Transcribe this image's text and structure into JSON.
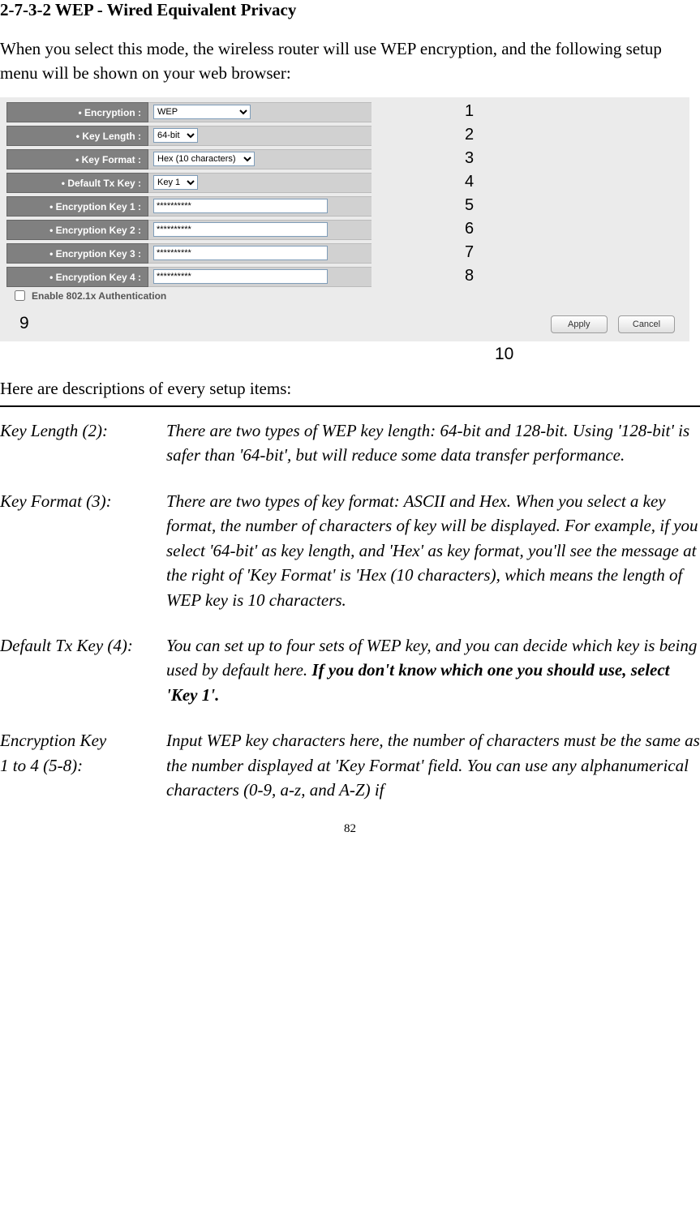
{
  "heading": "2-7-3-2 WEP - Wired Equivalent Privacy",
  "intro": "When you select this mode, the wireless router will use WEP encryption, and the following setup menu will be shown on your web browser:",
  "form": {
    "encryption_label": "Encryption :",
    "encryption_value": "WEP",
    "keylength_label": "Key Length :",
    "keylength_value": "64-bit",
    "keyformat_label": "Key Format :",
    "keyformat_value": "Hex (10 characters)",
    "defaulttx_label": "Default Tx Key :",
    "defaulttx_value": "Key 1",
    "key1_label": "Encryption Key 1 :",
    "key1_value": "**********",
    "key2_label": "Encryption Key 2 :",
    "key2_value": "**********",
    "key3_label": "Encryption Key 3 :",
    "key3_value": "**********",
    "key4_label": "Encryption Key 4 :",
    "key4_value": "**********",
    "auth_label": "Enable 802.1x Authentication",
    "apply_label": "Apply",
    "cancel_label": "Cancel"
  },
  "annotations": {
    "n1": "1",
    "n2": "2",
    "n3": "3",
    "n4": "4",
    "n5": "5",
    "n6": "6",
    "n7": "7",
    "n8": "8",
    "n9": "9",
    "n10": "10"
  },
  "desc_heading": "Here are descriptions of every setup items:",
  "descriptions": [
    {
      "term": "Key Length (2):",
      "def": "There are two types of WEP key length: 64-bit and 128-bit. Using '128-bit' is safer than '64-bit', but will reduce some data transfer performance."
    },
    {
      "term": "Key Format (3):",
      "def": "There are two types of key format: ASCII and Hex. When you select a key format, the number of characters of key will be displayed. For example, if you select '64-bit' as key length, and 'Hex' as key format, you'll see the message at the right of 'Key Format' is 'Hex (10 characters), which means the length of WEP key is 10 characters."
    },
    {
      "term": "Default Tx Key (4):",
      "def_pre": "You can set up to four sets of WEP key, and you can decide which key is being used by default here. ",
      "def_bold": "If you don't know which one you should use, select 'Key 1'."
    },
    {
      "term_l1": "Encryption Key",
      "term_l2": "1 to 4 (5-8):",
      "def": "Input WEP key characters here, the number of characters must be the same as the number displayed at 'Key Format' field. You can use any alphanumerical characters (0-9, a-z, and A-Z) if"
    }
  ],
  "page_number": "82",
  "colors": {
    "screenshot_bg": "#ebebeb",
    "label_bg": "#808080",
    "input_bg": "#d1d1d1",
    "text": "#000000"
  }
}
